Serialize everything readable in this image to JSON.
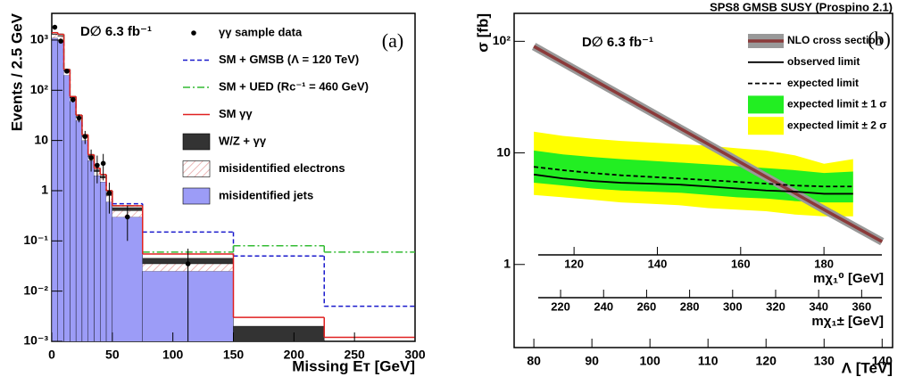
{
  "chart_data": [
    {
      "type": "histogram",
      "annotation": "D∅ 6.3 fb⁻¹",
      "panel_label": "(a)",
      "xlabel": "Missing Eᴛ [GeV]",
      "ylabel": "Events / 2.5 GeV",
      "bins": [
        0,
        5,
        10,
        15,
        20,
        25,
        30,
        35,
        40,
        45,
        50,
        75,
        150,
        225,
        300
      ],
      "xlim": [
        0,
        300
      ],
      "ylim": [
        0.001,
        3400
      ],
      "log_y": true,
      "xticks": [
        0,
        50,
        100,
        150,
        200,
        250,
        300
      ],
      "yticks": [
        {
          "value": 0.001,
          "label": "10⁻³"
        },
        {
          "value": 0.01,
          "label": "10⁻²"
        },
        {
          "value": 0.1,
          "label": "10⁻¹"
        },
        1,
        10,
        {
          "value": 100,
          "label": "10²"
        },
        {
          "value": 1000,
          "label": "10³"
        }
      ],
      "series": [
        {
          "name": "misidentified jets",
          "color": "#9c9cf7",
          "values": [
            1100,
            1000,
            200,
            60,
            25,
            10,
            4,
            2,
            1.5,
            0.6,
            0.3,
            0.025,
            0,
            0
          ]
        },
        {
          "name": "misidentified electrons",
          "color": "#ffffff",
          "hatch": "#e6a0a0",
          "values": [
            200,
            200,
            40,
            10,
            4,
            2,
            0.7,
            0.4,
            0.3,
            0.2,
            0.1,
            0.01,
            0,
            0
          ]
        },
        {
          "name": "W/Z + γγ",
          "color": "#333333",
          "values": [
            20,
            20,
            5,
            2,
            1,
            0.5,
            0.3,
            0.2,
            0.15,
            0.1,
            0.06,
            0.01,
            0.002,
            0
          ]
        }
      ],
      "lines": [
        {
          "name": "SM + GMSB (Λ = 120 TeV)",
          "color": "#1a1acc",
          "dash": "dashed",
          "values": [
            1400,
            1300,
            260,
            75,
            32,
            13,
            5.2,
            2.8,
            2.1,
            1.0,
            0.55,
            0.15,
            0.05,
            0.005
          ]
        },
        {
          "name": "SM + UED (Rc⁻¹ = 460 GeV)",
          "color": "#33bb33",
          "dash": "dashdot",
          "values": [
            1400,
            1300,
            260,
            75,
            32,
            13,
            5.2,
            2.8,
            2.1,
            1.0,
            0.5,
            0.06,
            0.08,
            0.06
          ]
        },
        {
          "name": "SM γγ",
          "color": "#e02020",
          "dash": "solid",
          "values": [
            1400,
            1300,
            260,
            75,
            32,
            13,
            5.2,
            2.8,
            2.1,
            1.0,
            0.5,
            0.055,
            0.003,
            0.0012
          ]
        }
      ],
      "points": {
        "name": "γγ sample data",
        "color": "#000000",
        "x": [
          2.5,
          7.5,
          12.5,
          17.5,
          22.5,
          27.5,
          32.5,
          37.5,
          42.5,
          47.5,
          62.5,
          112.5
        ],
        "values": [
          1800,
          950,
          240,
          65,
          28,
          12,
          4.5,
          3.2,
          3.5,
          0.9,
          0.3,
          0.035
        ],
        "errors": [
          42,
          31,
          15,
          8,
          5,
          3.5,
          2.1,
          1.8,
          1.9,
          0.55,
          0.2,
          0.035
        ]
      }
    },
    {
      "type": "line",
      "title": "SPS8 GMSB SUSY (Prospino 2.1)",
      "annotation": "D∅ 6.3 fb⁻¹",
      "panel_label": "(b)",
      "xlabel": "Λ [TeV]",
      "ylabel": "σ [fb]",
      "xlim": [
        76.6,
        141.8
      ],
      "ylim": [
        0.18,
        178
      ],
      "log_y": true,
      "xticks": [
        80,
        90,
        100,
        110,
        120,
        130,
        140
      ],
      "yticks": [
        1,
        10,
        {
          "value": 100,
          "label": "10²"
        }
      ],
      "x2": {
        "label": "mχ₁⁰ [GeV]",
        "lim": [
          111.4,
          193.9
        ],
        "ticks": [
          120,
          140,
          160,
          180
        ]
      },
      "x3": {
        "label": "mχ₁± [GeV]",
        "lim": [
          209.6,
          369.4
        ],
        "ticks": [
          220,
          240,
          260,
          280,
          300,
          320,
          340,
          360
        ]
      },
      "bands": [
        {
          "name": "expected limit ± 2 σ",
          "color": "#ffff00",
          "x": [
            80,
            85,
            90,
            95,
            100,
            105,
            110,
            115,
            120,
            125,
            130,
            135
          ],
          "low": [
            4.2,
            4.0,
            3.8,
            3.6,
            3.5,
            3.4,
            3.2,
            3.1,
            3.0,
            2.8,
            2.7,
            2.7
          ],
          "high": [
            15.5,
            14.2,
            13.4,
            12.8,
            12.4,
            12,
            11.6,
            11,
            10.5,
            9.5,
            8,
            8.8
          ]
        },
        {
          "name": "expected limit ± 1 σ",
          "color": "#22ee22",
          "x": [
            80,
            85,
            90,
            95,
            100,
            105,
            110,
            115,
            120,
            125,
            130,
            135
          ],
          "low": [
            5.4,
            5.1,
            4.8,
            4.6,
            4.5,
            4.4,
            4.2,
            4.0,
            3.9,
            3.7,
            3.6,
            3.6
          ],
          "high": [
            10.5,
            9.7,
            9.2,
            8.8,
            8.5,
            8.2,
            7.9,
            7.6,
            7.3,
            7.0,
            6.6,
            6.8
          ]
        }
      ],
      "series": [
        {
          "name": "NLO cross section",
          "color": "#8b3a3a",
          "band_color": "#999999",
          "dash": "solid",
          "x": [
            80,
            90,
            100,
            110,
            120,
            130,
            140
          ],
          "values": [
            90,
            46,
            23.5,
            12,
            6.1,
            3.1,
            1.6
          ]
        },
        {
          "name": "observed limit",
          "color": "#000000",
          "dash": "solid",
          "x": [
            80,
            85,
            90,
            95,
            100,
            105,
            110,
            115,
            120,
            125,
            130,
            135
          ],
          "values": [
            6.4,
            5.9,
            5.6,
            5.4,
            5.3,
            5.2,
            5.0,
            4.8,
            4.6,
            4.5,
            4.3,
            4.3
          ]
        },
        {
          "name": "expected limit",
          "color": "#000000",
          "dash": "dashed",
          "x": [
            80,
            85,
            90,
            95,
            100,
            105,
            110,
            115,
            120,
            125,
            130,
            135
          ],
          "values": [
            7.5,
            7.0,
            6.6,
            6.3,
            6.1,
            5.9,
            5.7,
            5.5,
            5.3,
            5.1,
            5.0,
            5.0
          ]
        }
      ]
    }
  ]
}
